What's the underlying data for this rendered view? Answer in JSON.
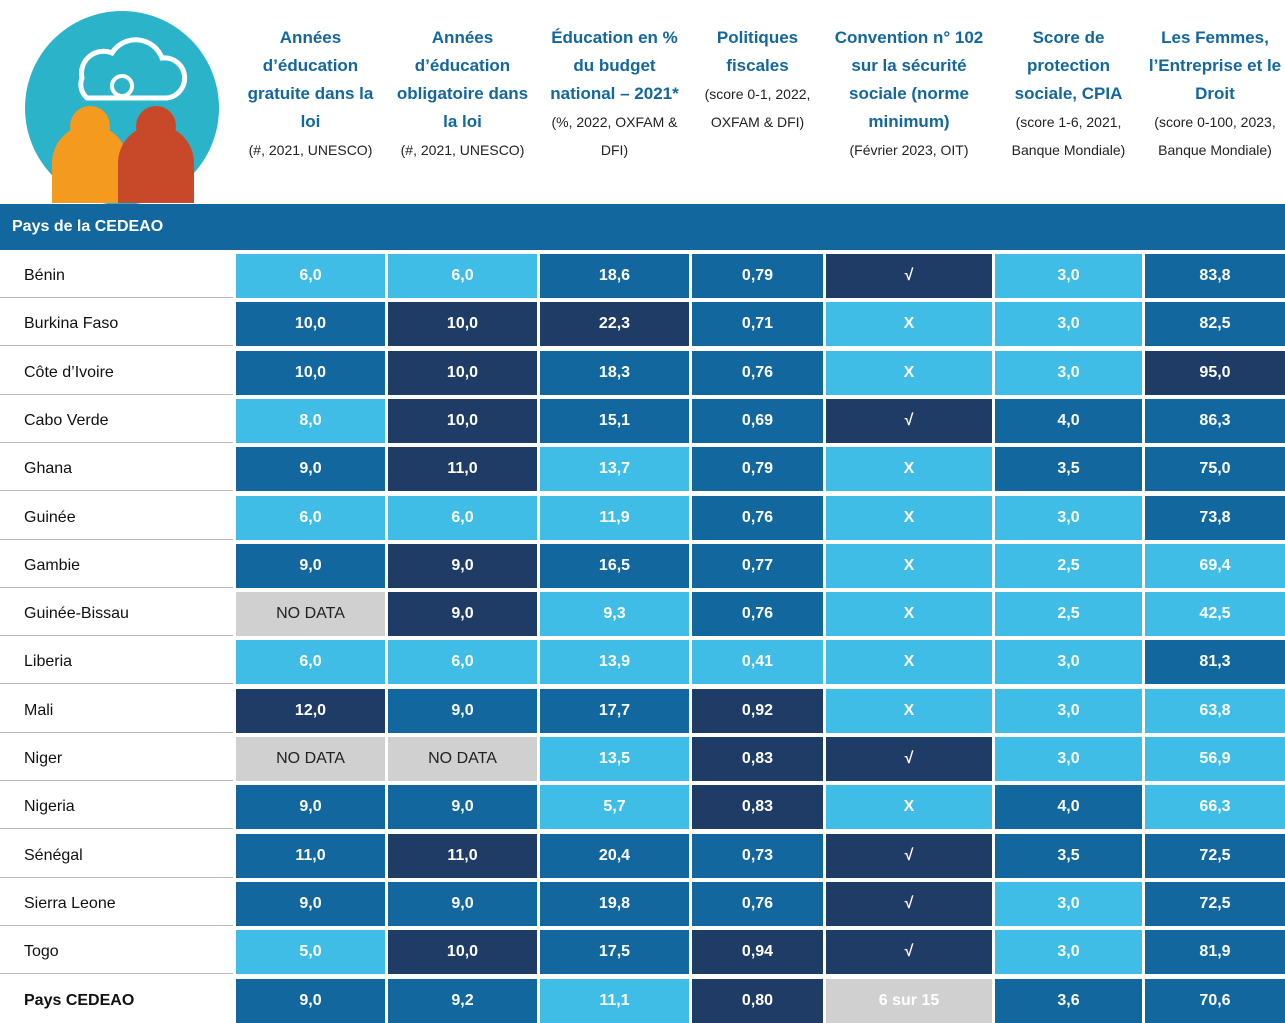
{
  "header": {
    "columns": [
      {
        "title": "Années d’éducation gratuite dans la loi",
        "note": "(#, 2021, UNESCO)"
      },
      {
        "title": "Années d’éducation obligatoire dans la loi",
        "note": "(#, 2021, UNESCO)"
      },
      {
        "title": "Éducation en % du budget national – 2021*",
        "note": "(%, 2022, OXFAM & DFI)"
      },
      {
        "title": "Politiques fiscales",
        "note": "(score 0-1, 2022, OXFAM & DFI)"
      },
      {
        "title": "Convention n° 102 sur la sécurité sociale (norme minimum)",
        "note": "(Février 2023, OIT)"
      },
      {
        "title": "Score de protection sociale, CPIA",
        "note": "(score 1-6, 2021, Banque Mondiale)"
      },
      {
        "title": "Les Femmes, l’Entreprise et le Droit",
        "note": "(score 0-100, 2023, Banque Mondiale)"
      }
    ]
  },
  "table": {
    "section": "Pays de la CEDEAO",
    "rows": [
      {
        "country": "Bénin",
        "cells": [
          "6,0",
          "6,0",
          "18,6",
          "0,79",
          "√",
          "3,0",
          "83,8"
        ],
        "shades": [
          "#3fbde6",
          "#3fbde6",
          "#13679f",
          "#13679f",
          "#1f3c66",
          "#3fbde6",
          "#13679f"
        ]
      },
      {
        "country": "Burkina Faso",
        "cells": [
          "10,0",
          "10,0",
          "22,3",
          "0,71",
          "X",
          "3,0",
          "82,5"
        ],
        "shades": [
          "#13679f",
          "#1f3c66",
          "#1f3c66",
          "#13679f",
          "#3fbde6",
          "#3fbde6",
          "#13679f"
        ]
      },
      {
        "country": "Côte d’Ivoire",
        "cells": [
          "10,0",
          "10,0",
          "18,3",
          "0,76",
          "X",
          "3,0",
          "95,0"
        ],
        "shades": [
          "#13679f",
          "#1f3c66",
          "#13679f",
          "#13679f",
          "#3fbde6",
          "#3fbde6",
          "#1f3c66"
        ]
      },
      {
        "country": "Cabo Verde",
        "cells": [
          "8,0",
          "10,0",
          "15,1",
          "0,69",
          "√",
          "4,0",
          "86,3"
        ],
        "shades": [
          "#3fbde6",
          "#1f3c66",
          "#13679f",
          "#13679f",
          "#1f3c66",
          "#13679f",
          "#13679f"
        ]
      },
      {
        "country": "Ghana",
        "cells": [
          "9,0",
          "11,0",
          "13,7",
          "0,79",
          "X",
          "3,5",
          "75,0"
        ],
        "shades": [
          "#13679f",
          "#1f3c66",
          "#3fbde6",
          "#13679f",
          "#3fbde6",
          "#13679f",
          "#13679f"
        ]
      },
      {
        "country": "Guinée",
        "cells": [
          "6,0",
          "6,0",
          "11,9",
          "0,76",
          "X",
          "3,0",
          "73,8"
        ],
        "shades": [
          "#3fbde6",
          "#3fbde6",
          "#3fbde6",
          "#13679f",
          "#3fbde6",
          "#3fbde6",
          "#13679f"
        ]
      },
      {
        "country": "Gambie",
        "cells": [
          "9,0",
          "9,0",
          "16,5",
          "0,77",
          "X",
          "2,5",
          "69,4"
        ],
        "shades": [
          "#13679f",
          "#1f3c66",
          "#13679f",
          "#13679f",
          "#3fbde6",
          "#3fbde6",
          "#3fbde6"
        ]
      },
      {
        "country": "Guinée-Bissau",
        "cells": [
          "NO DATA",
          "9,0",
          "9,3",
          "0,76",
          "X",
          "2,5",
          "42,5"
        ],
        "shades": [
          "#d0d0d0",
          "#1f3c66",
          "#3fbde6",
          "#13679f",
          "#3fbde6",
          "#3fbde6",
          "#3fbde6"
        ]
      },
      {
        "country": "Liberia",
        "cells": [
          "6,0",
          "6,0",
          "13,9",
          "0,41",
          "X",
          "3,0",
          "81,3"
        ],
        "shades": [
          "#3fbde6",
          "#3fbde6",
          "#3fbde6",
          "#3fbde6",
          "#3fbde6",
          "#3fbde6",
          "#13679f"
        ]
      },
      {
        "country": "Mali",
        "cells": [
          "12,0",
          "9,0",
          "17,7",
          "0,92",
          "X",
          "3,0",
          "63,8"
        ],
        "shades": [
          "#1f3c66",
          "#13679f",
          "#13679f",
          "#1f3c66",
          "#3fbde6",
          "#3fbde6",
          "#3fbde6"
        ]
      },
      {
        "country": "Niger",
        "cells": [
          "NO DATA",
          "NO DATA",
          "13,5",
          "0,83",
          "√",
          "3,0",
          "56,9"
        ],
        "shades": [
          "#d0d0d0",
          "#d0d0d0",
          "#3fbde6",
          "#1f3c66",
          "#1f3c66",
          "#3fbde6",
          "#3fbde6"
        ]
      },
      {
        "country": "Nigeria",
        "cells": [
          "9,0",
          "9,0",
          "5,7",
          "0,83",
          "X",
          "4,0",
          "66,3"
        ],
        "shades": [
          "#13679f",
          "#13679f",
          "#3fbde6",
          "#1f3c66",
          "#3fbde6",
          "#13679f",
          "#3fbde6"
        ]
      },
      {
        "country": "Sénégal",
        "cells": [
          "11,0",
          "11,0",
          "20,4",
          "0,73",
          "√",
          "3,5",
          "72,5"
        ],
        "shades": [
          "#13679f",
          "#1f3c66",
          "#13679f",
          "#13679f",
          "#1f3c66",
          "#13679f",
          "#13679f"
        ]
      },
      {
        "country": "Sierra Leone",
        "cells": [
          "9,0",
          "9,0",
          "19,8",
          "0,76",
          "√",
          "3,0",
          "72,5"
        ],
        "shades": [
          "#13679f",
          "#13679f",
          "#13679f",
          "#13679f",
          "#1f3c66",
          "#3fbde6",
          "#13679f"
        ]
      },
      {
        "country": "Togo",
        "cells": [
          "5,0",
          "10,0",
          "17,5",
          "0,94",
          "√",
          "3,0",
          "81,9"
        ],
        "shades": [
          "#3fbde6",
          "#1f3c66",
          "#13679f",
          "#1f3c66",
          "#1f3c66",
          "#3fbde6",
          "#13679f"
        ]
      }
    ],
    "total": {
      "country": "Pays CEDEAO",
      "cells": [
        "9,0",
        "9,2",
        "11,1",
        "0,80",
        "6 sur 15",
        "3,6",
        "70,6"
      ],
      "shades": [
        "#13679f",
        "#13679f",
        "#3fbde6",
        "#1f3c66",
        "#d0d0d0",
        "#13679f",
        "#13679f"
      ]
    }
  }
}
